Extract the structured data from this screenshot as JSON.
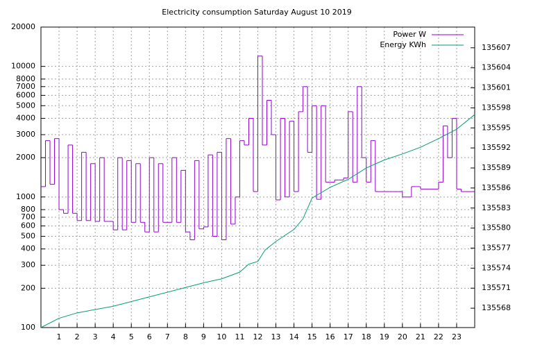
{
  "chart_data": {
    "type": "line",
    "title": "Electricity consumption Saturday August 10 2019",
    "xlim": [
      0,
      24
    ],
    "xticks": [
      1,
      2,
      3,
      4,
      5,
      6,
      7,
      8,
      9,
      10,
      11,
      12,
      13,
      14,
      15,
      16,
      17,
      18,
      19,
      20,
      21,
      22,
      23
    ],
    "ylim": [
      100,
      20000
    ],
    "ylog": true,
    "yticks": [
      100,
      200,
      300,
      400,
      500,
      600,
      700,
      800,
      1000,
      2000,
      3000,
      4000,
      5000,
      6000,
      7000,
      8000,
      10000,
      20000
    ],
    "y2lim": [
      135565.1,
      135610.1
    ],
    "y2ticks": [
      135568,
      135571,
      135574,
      135577,
      135580,
      135583,
      135586,
      135589,
      135592,
      135595,
      135598,
      135601,
      135604,
      135607
    ],
    "grid": true,
    "legend": "top-right",
    "series": [
      {
        "name": "Power W",
        "color": "#9400d3",
        "steps": true,
        "x": [
          0,
          0.25,
          0.5,
          0.75,
          1,
          1.25,
          1.5,
          1.75,
          2,
          2.25,
          2.5,
          2.75,
          3,
          3.25,
          3.5,
          3.75,
          4,
          4.25,
          4.5,
          4.75,
          5,
          5.25,
          5.5,
          5.75,
          6,
          6.25,
          6.5,
          6.75,
          7,
          7.25,
          7.5,
          7.75,
          8,
          8.25,
          8.5,
          8.75,
          9,
          9.25,
          9.5,
          9.75,
          10,
          10.25,
          10.5,
          10.75,
          11,
          11.25,
          11.5,
          11.75,
          12,
          12.25,
          12.5,
          12.75,
          13,
          13.25,
          13.5,
          13.75,
          14,
          14.25,
          14.5,
          14.75,
          15,
          15.25,
          15.5,
          15.75,
          16,
          16.25,
          16.5,
          16.75,
          17,
          17.25,
          17.5,
          17.75,
          18,
          18.25,
          18.5,
          18.75,
          19,
          19.25,
          19.5,
          19.75,
          20,
          20.25,
          20.5,
          20.75,
          21,
          21.25,
          21.5,
          21.75,
          22,
          22.25,
          22.5,
          22.75,
          23,
          23.25,
          23.5,
          23.75
        ],
        "values": [
          1200,
          2700,
          1250,
          2800,
          800,
          750,
          2500,
          750,
          660,
          2200,
          660,
          1800,
          650,
          2000,
          650,
          650,
          560,
          2000,
          560,
          1900,
          640,
          1800,
          640,
          540,
          2000,
          540,
          1800,
          640,
          640,
          2000,
          640,
          1600,
          540,
          470,
          1900,
          570,
          590,
          2100,
          500,
          2200,
          470,
          2800,
          620,
          1000,
          2700,
          2500,
          4000,
          1100,
          12000,
          2500,
          5500,
          3000,
          950,
          4000,
          1000,
          3800,
          1100,
          4500,
          7000,
          2200,
          5000,
          960,
          5000,
          1300,
          1300,
          1350,
          1350,
          1400,
          4500,
          1300,
          7000,
          2000,
          1300,
          2700,
          1100,
          1100,
          1100,
          1100,
          1100,
          1100,
          1000,
          1000,
          1200,
          1200,
          1150,
          1150,
          1150,
          1150,
          1300,
          3500,
          2000,
          4000,
          1150,
          1100,
          1100,
          1100
        ]
      },
      {
        "name": "Energy KWh",
        "color": "#009e73",
        "axis": "y2",
        "x": [
          0,
          1,
          2,
          4,
          6,
          8,
          9,
          10,
          11,
          11.5,
          12,
          12.4,
          13,
          14,
          14.5,
          15,
          15.5,
          16,
          17,
          18,
          19,
          20,
          21,
          22,
          23,
          24
        ],
        "values": [
          135565.1,
          135566.5,
          135567.3,
          135568.3,
          135569.7,
          135571.1,
          135571.8,
          135572.4,
          135573.4,
          135574.6,
          135575,
          135576.7,
          135578,
          135579.8,
          135581.4,
          135584.5,
          135585.3,
          135586.1,
          135587.3,
          135589,
          135590.2,
          135591.1,
          135592.1,
          135593.4,
          135594.8,
          135597
        ]
      }
    ]
  }
}
